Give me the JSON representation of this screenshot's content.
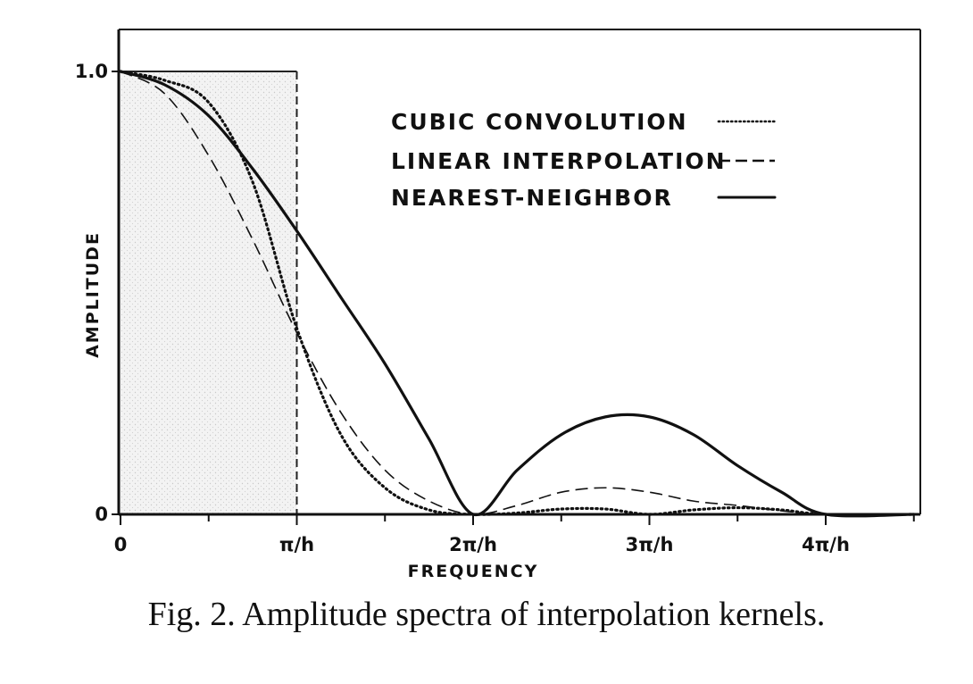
{
  "caption": "Fig. 2.  Amplitude spectra of interpolation kernels.",
  "chart_data": {
    "type": "line",
    "xlabel": "FREQUENCY",
    "ylabel": "AMPLITUDE",
    "xlim": [
      0,
      4.5
    ],
    "ylim": [
      0,
      1.0
    ],
    "x_unit": "π/h",
    "xticks": [
      {
        "value": 0,
        "label": "0"
      },
      {
        "value": 1,
        "label": "π/h"
      },
      {
        "value": 2,
        "label": "2π/h"
      },
      {
        "value": 3,
        "label": "3π/h"
      },
      {
        "value": 4,
        "label": "4π/h"
      }
    ],
    "yticks": [
      {
        "value": 0,
        "label": "0"
      },
      {
        "value": 1.0,
        "label": "1.0"
      }
    ],
    "legend_position": "top-right",
    "grid": false,
    "ideal_passband": {
      "x_range": [
        0,
        1
      ],
      "height": 1.0,
      "style": "shaded-box-dashed-edge"
    },
    "series": [
      {
        "name": "CUBIC CONVOLUTION",
        "style": "dotted",
        "x": [
          0,
          0.25,
          0.5,
          0.75,
          1.0,
          1.25,
          1.5,
          1.75,
          2.0,
          2.25,
          2.5,
          2.75,
          3.0,
          3.25,
          3.5,
          3.75,
          4.0,
          4.5
        ],
        "y": [
          1.0,
          0.98,
          0.93,
          0.75,
          0.42,
          0.18,
          0.06,
          0.01,
          0.0,
          0.003,
          0.012,
          0.012,
          0.0,
          0.01,
          0.015,
          0.01,
          0.0,
          0.0
        ]
      },
      {
        "name": "LINEAR INTERPOLATION",
        "style": "dashed",
        "x": [
          0,
          0.25,
          0.5,
          0.75,
          1.0,
          1.25,
          1.5,
          1.75,
          2.0,
          2.25,
          2.5,
          2.75,
          3.0,
          3.25,
          3.5,
          3.75,
          4.0,
          4.5
        ],
        "y": [
          1.0,
          0.95,
          0.81,
          0.62,
          0.41,
          0.23,
          0.1,
          0.03,
          0.0,
          0.02,
          0.05,
          0.06,
          0.05,
          0.03,
          0.02,
          0.008,
          0.0,
          0.0
        ]
      },
      {
        "name": "NEAREST-NEIGHBOR",
        "style": "solid",
        "x": [
          0,
          0.25,
          0.5,
          0.75,
          1.0,
          1.25,
          1.5,
          1.75,
          2.0,
          2.25,
          2.5,
          2.75,
          3.0,
          3.25,
          3.5,
          3.75,
          4.0,
          4.5
        ],
        "y": [
          1.0,
          0.97,
          0.9,
          0.78,
          0.64,
          0.49,
          0.34,
          0.17,
          0.0,
          0.1,
          0.18,
          0.22,
          0.22,
          0.18,
          0.11,
          0.05,
          0.0,
          0.0
        ]
      }
    ]
  }
}
